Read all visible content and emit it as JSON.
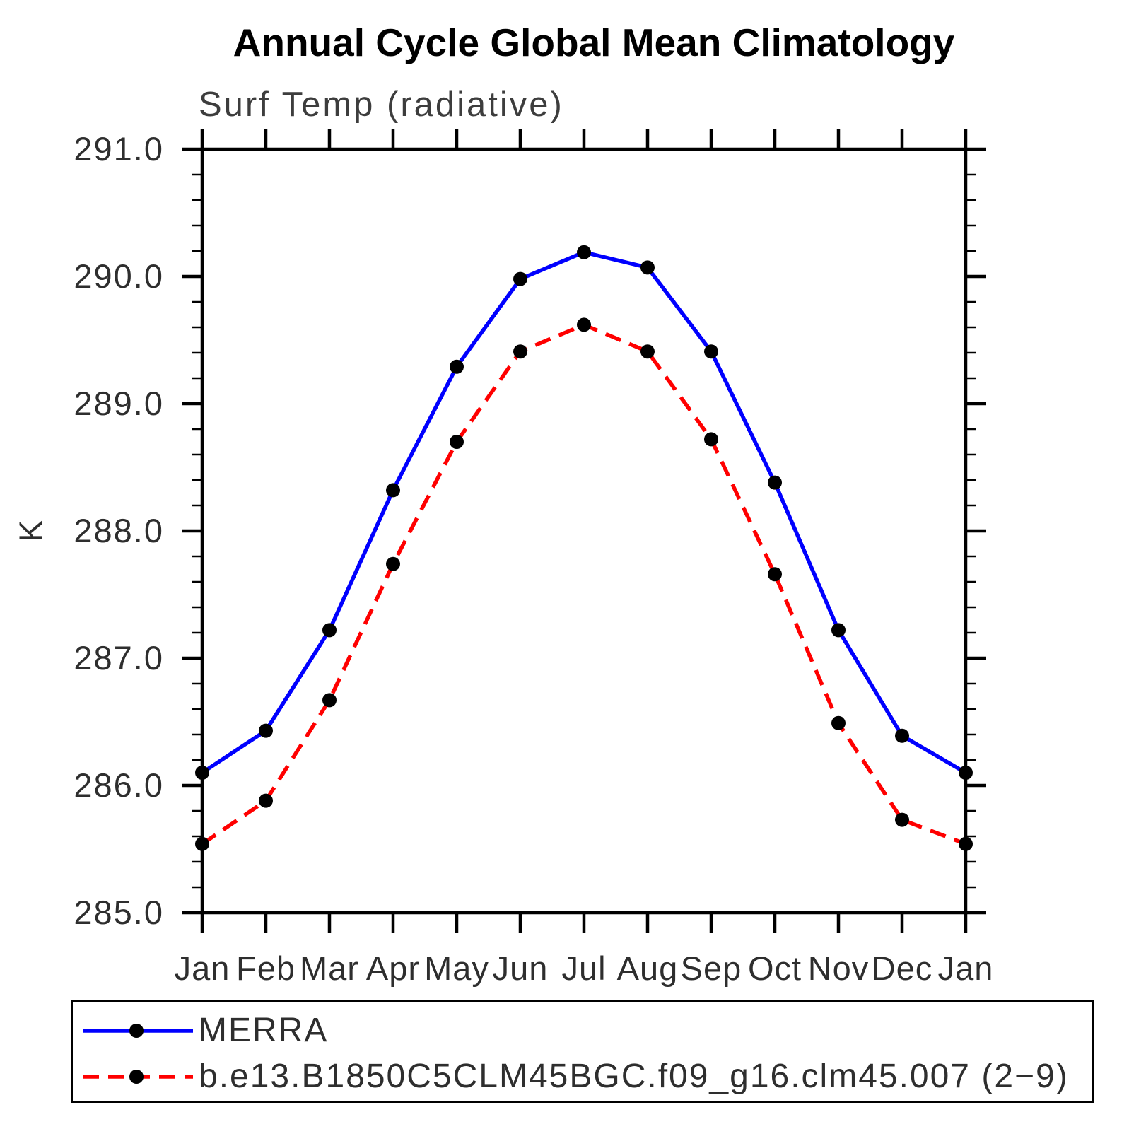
{
  "chart": {
    "title": "Annual Cycle Global Mean Climatology",
    "subtitle": "Surf Temp (radiative)",
    "y_axis_unit": "K"
  },
  "legend": {
    "items": [
      {
        "label": "MERRA",
        "color": "#0000ff",
        "line_style": "solid",
        "marker": "filled-circle"
      },
      {
        "label": "b.e13.B1850C5CLM45BGC.f09_g16.clm45.007 (2−9)",
        "color": "#ff0000",
        "line_style": "dashed",
        "marker": "filled-circle"
      }
    ]
  },
  "chart_data": {
    "type": "line",
    "title": "Annual Cycle Global Mean Climatology",
    "subtitle": "Surf Temp (radiative)",
    "xlabel": "",
    "ylabel": "K",
    "x_tick_labels": [
      "Jan",
      "Feb",
      "Mar",
      "Apr",
      "May",
      "Jun",
      "Jul",
      "Aug",
      "Sep",
      "Oct",
      "Nov",
      "Dec",
      "Jan"
    ],
    "y_tick_labels": [
      "291.0",
      "290.0",
      "289.0",
      "288.0",
      "287.0",
      "286.0",
      "285.0"
    ],
    "ylim": [
      285.0,
      291.0
    ],
    "y_major_step": 1.0,
    "y_minor_step": 0.2,
    "grid": false,
    "legend_position": "bottom",
    "series": [
      {
        "name": "MERRA",
        "color": "#0000ff",
        "line_style": "solid",
        "marker": "circle",
        "marker_color": "#000000",
        "values": [
          286.1,
          286.43,
          287.22,
          288.32,
          289.29,
          289.98,
          290.19,
          290.07,
          289.41,
          288.38,
          287.22,
          286.39,
          286.1
        ]
      },
      {
        "name": "b.e13.B1850C5CLM45BGC.f09_g16.clm45.007 (2−9)",
        "color": "#ff0000",
        "line_style": "dashed",
        "marker": "circle",
        "marker_color": "#000000",
        "values": [
          285.54,
          285.88,
          286.67,
          287.74,
          288.7,
          289.41,
          289.62,
          289.41,
          288.72,
          287.66,
          286.49,
          285.73,
          285.54
        ]
      }
    ]
  }
}
